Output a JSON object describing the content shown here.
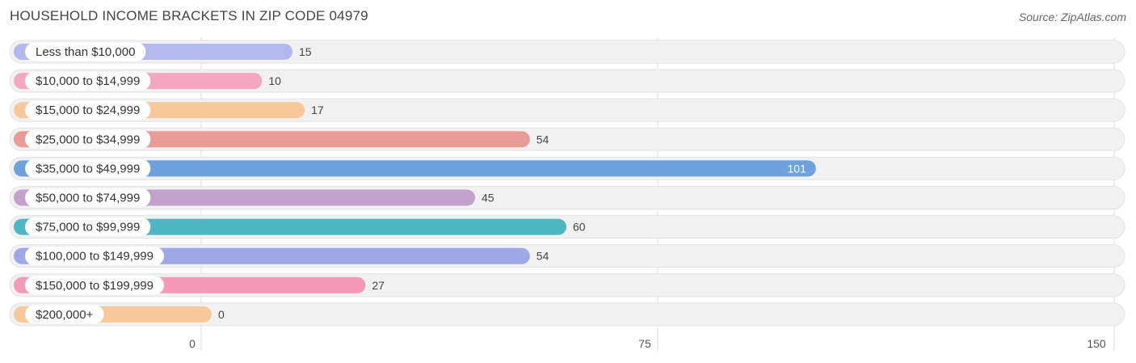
{
  "header": {
    "title": "HOUSEHOLD INCOME BRACKETS IN ZIP CODE 04979",
    "source": "Source: ZipAtlas.com"
  },
  "chart_data": {
    "type": "bar",
    "orientation": "horizontal",
    "title": "HOUSEHOLD INCOME BRACKETS IN ZIP CODE 04979",
    "xlabel": "",
    "ylabel": "",
    "xlim": [
      0,
      150
    ],
    "ticks": [
      0,
      75,
      150
    ],
    "grid": true,
    "categories": [
      "Less than $10,000",
      "$10,000 to $14,999",
      "$15,000 to $24,999",
      "$25,000 to $34,999",
      "$35,000 to $49,999",
      "$50,000 to $74,999",
      "$75,000 to $99,999",
      "$100,000 to $149,999",
      "$150,000 to $199,999",
      "$200,000+"
    ],
    "values": [
      15,
      10,
      17,
      54,
      101,
      45,
      60,
      54,
      27,
      0
    ],
    "colors": [
      "#b3b9ef",
      "#f5a7c2",
      "#f8c89a",
      "#ea9a97",
      "#6ea2de",
      "#c2a1cb",
      "#4fb6c3",
      "#9ea8e6",
      "#f49ab8",
      "#f8c89a"
    ]
  }
}
